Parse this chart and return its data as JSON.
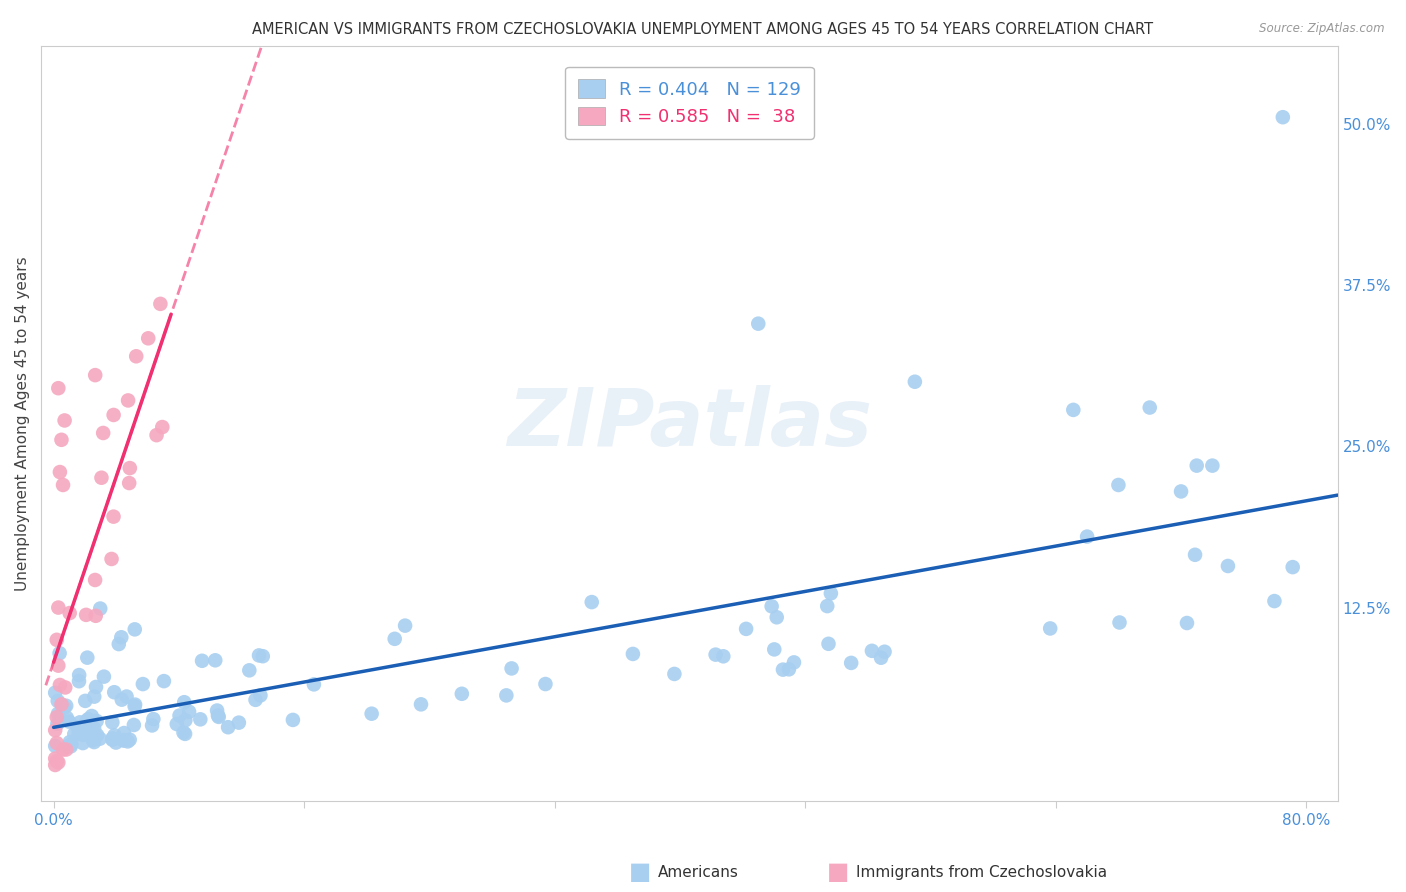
{
  "title": "AMERICAN VS IMMIGRANTS FROM CZECHOSLOVAKIA UNEMPLOYMENT AMONG AGES 45 TO 54 YEARS CORRELATION CHART",
  "source": "Source: ZipAtlas.com",
  "ylabel": "Unemployment Among Ages 45 to 54 years",
  "xlim": [
    -0.008,
    0.82
  ],
  "ylim": [
    -0.025,
    0.56
  ],
  "xticks": [
    0.0,
    0.16,
    0.32,
    0.48,
    0.64,
    0.8
  ],
  "xticklabels": [
    "0.0%",
    "",
    "",
    "",
    "",
    "80.0%"
  ],
  "ytick_positions": [
    0.0,
    0.125,
    0.25,
    0.375,
    0.5
  ],
  "ytick_labels": [
    "",
    "12.5%",
    "25.0%",
    "37.5%",
    "50.0%"
  ],
  "grid_color": "#c8c8c8",
  "background_color": "#ffffff",
  "watermark_text": "ZIPatlas",
  "legend_r_american": "0.404",
  "legend_n_american": "129",
  "legend_r_czech": "0.585",
  "legend_n_czech": "38",
  "american_color": "#a8cff0",
  "czech_color": "#f5a8c0",
  "american_line_color": "#1a5fb5",
  "czech_line_color": "#f03070",
  "tick_color": "#4a90d9",
  "title_fontsize": 10.5,
  "axis_label_fontsize": 11,
  "tick_fontsize": 11,
  "legend_fontsize": 13
}
